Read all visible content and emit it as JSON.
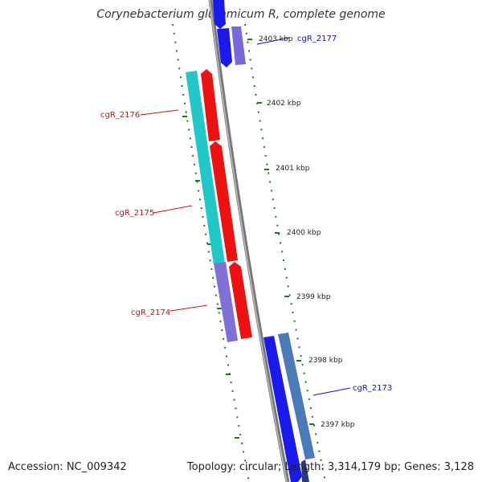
{
  "title": "Corynebacterium glutamicum R, complete genome",
  "accession": "Accession: NC_009342",
  "stats": "Topology: circular; Length: 3,314,179 bp; Genes: 3,128",
  "colors": {
    "forward_cds": "#1a1aee",
    "forward_cds_alt": "#7b68d8",
    "reverse_cds": "#ee1111",
    "reverse_alt": "#20c8c8",
    "reverse_alt2": "#8070d8",
    "forward_alt2": "#4a7ab8",
    "backbone": "#888888",
    "ticks": "#1a7a1a",
    "label_forward": "#1010cc",
    "label_reverse": "#cc1010"
  },
  "kbp_labels": [
    "2403 kbp",
    "2402 kbp",
    "2401 kbp",
    "2400 kbp",
    "2399 kbp",
    "2398 kbp",
    "2397 kbp"
  ],
  "gene_labels": {
    "g2177": "cgR_2177",
    "g2176": "cgR_2176",
    "g2175": "cgR_2175",
    "g2174": "cgR_2174",
    "g2173": "cgR_2173"
  }
}
